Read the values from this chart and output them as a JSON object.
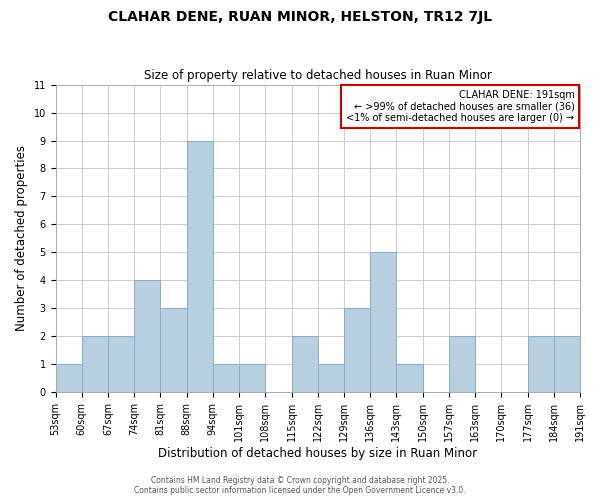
{
  "title": "CLAHAR DENE, RUAN MINOR, HELSTON, TR12 7JL",
  "subtitle": "Size of property relative to detached houses in Ruan Minor",
  "xlabel": "Distribution of detached houses by size in Ruan Minor",
  "ylabel": "Number of detached properties",
  "bin_labels": [
    "53sqm",
    "60sqm",
    "67sqm",
    "74sqm",
    "81sqm",
    "88sqm",
    "94sqm",
    "101sqm",
    "108sqm",
    "115sqm",
    "122sqm",
    "129sqm",
    "136sqm",
    "143sqm",
    "150sqm",
    "157sqm",
    "163sqm",
    "170sqm",
    "177sqm",
    "184sqm",
    "191sqm"
  ],
  "counts": [
    1,
    2,
    2,
    4,
    3,
    9,
    1,
    1,
    0,
    2,
    1,
    3,
    5,
    1,
    0,
    2,
    0,
    0,
    2,
    2
  ],
  "bar_color": "#b8cfe0",
  "bar_edge_color": "#8aafc8",
  "annotation_title": "CLAHAR DENE: 191sqm",
  "annotation_line1": "← >99% of detached houses are smaller (36)",
  "annotation_line2": "<1% of semi-detached houses are larger (0) →",
  "annotation_box_color": "#ffffff",
  "annotation_box_edge_color": "#cc0000",
  "ylim": [
    0,
    11
  ],
  "yticks": [
    0,
    1,
    2,
    3,
    4,
    5,
    6,
    7,
    8,
    9,
    10,
    11
  ],
  "footer_line1": "Contains HM Land Registry data © Crown copyright and database right 2025.",
  "footer_line2": "Contains public sector information licensed under the Open Government Licence v3.0.",
  "grid_color": "#cccccc",
  "background_color": "#ffffff",
  "title_fontsize": 10,
  "subtitle_fontsize": 8.5,
  "xlabel_fontsize": 8.5,
  "ylabel_fontsize": 8.5,
  "tick_fontsize": 7,
  "annotation_fontsize": 7,
  "footer_fontsize": 5.5
}
